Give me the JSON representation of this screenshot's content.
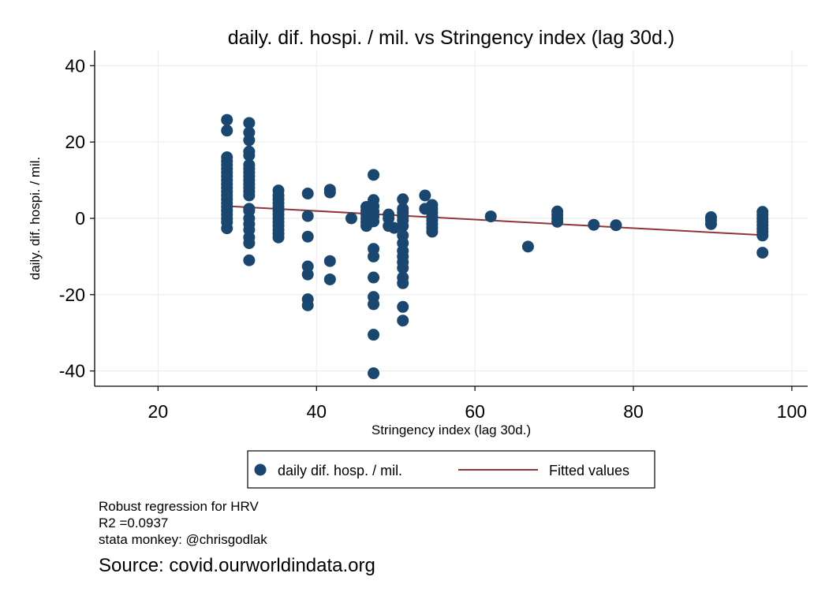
{
  "chart_data": {
    "type": "scatter",
    "title": "daily. dif. hospi. / mil. vs Stringency index (lag 30d.)",
    "xlabel": "Stringency index (lag 30d.)",
    "ylabel": "daily. dif. hospi. / mil.",
    "xlim": [
      12,
      102
    ],
    "ylim": [
      -44,
      44
    ],
    "xticks": [
      "20",
      "40",
      "60",
      "80",
      "100"
    ],
    "yticks": [
      "40",
      "20",
      "0",
      "-20",
      "-40"
    ],
    "grid": true,
    "legend_position": "bottom",
    "series": [
      {
        "name": "daily dif. hosp. / mil.",
        "kind": "scatter",
        "color": "#1a476f",
        "points": [
          [
            28.7,
            25.8
          ],
          [
            28.7,
            23.0
          ],
          [
            28.7,
            16.0
          ],
          [
            28.7,
            15.0
          ],
          [
            28.7,
            14.0
          ],
          [
            28.7,
            13.0
          ],
          [
            28.7,
            12.0
          ],
          [
            28.7,
            11.0
          ],
          [
            28.7,
            10.0
          ],
          [
            28.7,
            9.0
          ],
          [
            28.7,
            8.0
          ],
          [
            28.7,
            7.0
          ],
          [
            28.7,
            6.0
          ],
          [
            28.7,
            5.0
          ],
          [
            28.7,
            4.0
          ],
          [
            28.7,
            3.0
          ],
          [
            28.7,
            2.0
          ],
          [
            28.7,
            1.0
          ],
          [
            28.7,
            0.0
          ],
          [
            28.7,
            -1.0
          ],
          [
            28.7,
            -2.6
          ],
          [
            31.5,
            25.0
          ],
          [
            31.5,
            22.5
          ],
          [
            31.5,
            20.5
          ],
          [
            31.5,
            17.5
          ],
          [
            31.5,
            16.5
          ],
          [
            31.5,
            14.0
          ],
          [
            31.5,
            13.0
          ],
          [
            31.5,
            12.0
          ],
          [
            31.5,
            11.0
          ],
          [
            31.5,
            10.0
          ],
          [
            31.5,
            9.0
          ],
          [
            31.5,
            8.0
          ],
          [
            31.5,
            7.0
          ],
          [
            31.5,
            6.0
          ],
          [
            31.5,
            2.5
          ],
          [
            31.5,
            2.0
          ],
          [
            31.5,
            0.0
          ],
          [
            31.5,
            -1.5
          ],
          [
            31.5,
            -3.0
          ],
          [
            31.5,
            -5.0
          ],
          [
            31.5,
            -6.5
          ],
          [
            31.5,
            -11.0
          ],
          [
            35.2,
            7.3
          ],
          [
            35.2,
            6.0
          ],
          [
            35.2,
            5.0
          ],
          [
            35.2,
            4.0
          ],
          [
            35.2,
            3.0
          ],
          [
            35.2,
            2.0
          ],
          [
            35.2,
            1.0
          ],
          [
            35.2,
            0.0
          ],
          [
            35.2,
            -1.0
          ],
          [
            35.2,
            -2.0
          ],
          [
            35.2,
            -3.0
          ],
          [
            35.2,
            -4.0
          ],
          [
            35.2,
            -5.0
          ],
          [
            38.9,
            6.5
          ],
          [
            38.9,
            0.6
          ],
          [
            38.9,
            -4.8
          ],
          [
            38.9,
            -12.6
          ],
          [
            38.9,
            -14.7
          ],
          [
            38.9,
            -21.2
          ],
          [
            38.9,
            -22.8
          ],
          [
            41.7,
            7.5
          ],
          [
            41.7,
            6.8
          ],
          [
            41.7,
            -11.2
          ],
          [
            41.7,
            -16.0
          ],
          [
            44.4,
            0.0
          ],
          [
            46.3,
            3.0
          ],
          [
            46.3,
            2.0
          ],
          [
            46.3,
            1.0
          ],
          [
            46.3,
            0.0
          ],
          [
            46.3,
            -1.0
          ],
          [
            46.3,
            -2.0
          ],
          [
            47.2,
            11.4
          ],
          [
            47.2,
            4.8
          ],
          [
            47.2,
            3.2
          ],
          [
            47.2,
            1.8
          ],
          [
            47.2,
            0.5
          ],
          [
            47.2,
            -0.8
          ],
          [
            47.2,
            -8.0
          ],
          [
            47.2,
            -10.0
          ],
          [
            47.2,
            -15.5
          ],
          [
            47.2,
            -20.6
          ],
          [
            47.2,
            -22.5
          ],
          [
            47.2,
            -30.5
          ],
          [
            47.2,
            -40.6
          ],
          [
            49.1,
            1.0
          ],
          [
            49.1,
            0.0
          ],
          [
            49.1,
            -2.0
          ],
          [
            49.8,
            -2.5
          ],
          [
            50.9,
            5.0
          ],
          [
            50.9,
            2.5
          ],
          [
            50.9,
            1.5
          ],
          [
            50.9,
            0.5
          ],
          [
            50.9,
            -0.5
          ],
          [
            50.9,
            -2.0
          ],
          [
            50.9,
            -4.5
          ],
          [
            50.9,
            -6.5
          ],
          [
            50.9,
            -8.5
          ],
          [
            50.9,
            -10.0
          ],
          [
            50.9,
            -11.5
          ],
          [
            50.9,
            -13.0
          ],
          [
            50.9,
            -15.5
          ],
          [
            50.9,
            -17.0
          ],
          [
            50.9,
            -23.2
          ],
          [
            50.9,
            -26.8
          ],
          [
            53.7,
            6.0
          ],
          [
            53.7,
            2.5
          ],
          [
            54.6,
            3.5
          ],
          [
            54.6,
            2.5
          ],
          [
            54.6,
            1.5
          ],
          [
            54.6,
            0.5
          ],
          [
            54.6,
            -0.5
          ],
          [
            54.6,
            -1.5
          ],
          [
            54.6,
            -2.5
          ],
          [
            54.6,
            -3.5
          ],
          [
            62.0,
            0.5
          ],
          [
            66.7,
            -7.4
          ],
          [
            70.4,
            1.8
          ],
          [
            70.4,
            0.9
          ],
          [
            70.4,
            0.0
          ],
          [
            70.4,
            -0.9
          ],
          [
            75.0,
            -1.7
          ],
          [
            77.8,
            -1.8
          ],
          [
            89.8,
            0.3
          ],
          [
            89.8,
            -0.5
          ],
          [
            89.8,
            -1.5
          ],
          [
            96.3,
            1.7
          ],
          [
            96.3,
            0.9
          ],
          [
            96.3,
            0.0
          ],
          [
            96.3,
            -0.9
          ],
          [
            96.3,
            -1.8
          ],
          [
            96.3,
            -2.7
          ],
          [
            96.3,
            -3.6
          ],
          [
            96.3,
            -4.5
          ],
          [
            96.3,
            -9.0
          ]
        ]
      },
      {
        "name": "Fitted values",
        "kind": "line",
        "color": "#90353b",
        "points": [
          [
            28.7,
            3.2
          ],
          [
            96.3,
            -4.4
          ]
        ]
      }
    ]
  },
  "notes": [
    "Robust regression for HRV",
    "R2 =0.0937",
    "stata monkey: @chrisgodlak"
  ],
  "source": "Source: covid.ourworldindata.org"
}
